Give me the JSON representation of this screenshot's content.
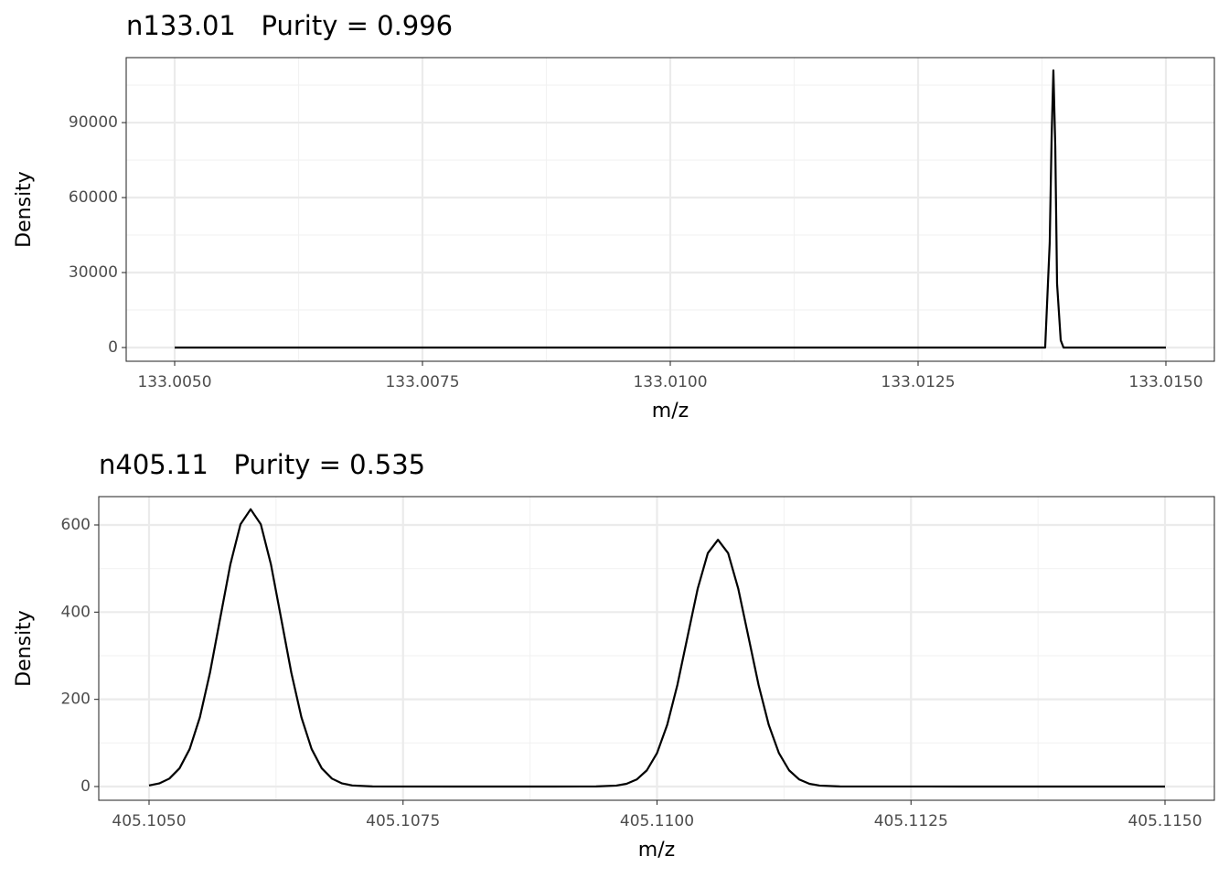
{
  "chart_data": [
    {
      "type": "line",
      "title": "n133.01   Purity = 0.996",
      "x_label": "m/z",
      "y_label": "Density",
      "color": "#000000",
      "grid": true,
      "minor_grid": true,
      "x": [
        133.005,
        133.013782,
        133.01381,
        133.013828,
        133.013847,
        133.013865,
        133.013884,
        133.013902,
        133.013939,
        133.013967,
        133.015
      ],
      "values": [
        0,
        0,
        25600,
        42000,
        84000,
        110900,
        80500,
        25600,
        2900,
        0,
        0
      ],
      "xlim": [
        133.004511,
        133.015489
      ],
      "ylim": [
        -5500,
        116000
      ],
      "xticks": [
        {
          "value": 133.005,
          "label": "133.0050"
        },
        {
          "value": 133.0075,
          "label": "133.0075"
        },
        {
          "value": 133.01,
          "label": "133.0100"
        },
        {
          "value": 133.0125,
          "label": "133.0125"
        },
        {
          "value": 133.015,
          "label": "133.0150"
        }
      ],
      "yticks": [
        0,
        30000,
        60000,
        90000
      ]
    },
    {
      "type": "line",
      "title": "n405.11   Purity = 0.535",
      "x_label": "m/z",
      "y_label": "Density",
      "color": "#000000",
      "grid": true,
      "minor_grid": true,
      "x": [
        405.105,
        405.1051,
        405.1052,
        405.1053,
        405.1054,
        405.1055,
        405.1056,
        405.1057,
        405.1058,
        405.1059,
        405.106,
        405.1061,
        405.1062,
        405.1063,
        405.1064,
        405.1065,
        405.1066,
        405.1067,
        405.1068,
        405.1069,
        405.107,
        405.1072,
        405.108,
        405.109,
        405.1094,
        405.1096,
        405.1097,
        405.1098,
        405.1099,
        405.11,
        405.1101,
        405.1102,
        405.1103,
        405.1104,
        405.1105,
        405.1106,
        405.1107,
        405.1108,
        405.1109,
        405.111,
        405.1111,
        405.1112,
        405.1113,
        405.1114,
        405.1115,
        405.1116,
        405.1118,
        405.113,
        405.115
      ],
      "values": [
        2.5,
        7.1,
        18.2,
        41.8,
        86.1,
        158.6,
        261.4,
        385.7,
        509.4,
        601.6,
        636,
        601.6,
        509.4,
        385.7,
        261.4,
        158.6,
        86.1,
        41.8,
        18.2,
        7.1,
        2.5,
        0.2,
        0,
        0,
        0.2,
        2.2,
        6.3,
        16.2,
        37.2,
        76.6,
        141.2,
        232.6,
        343.3,
        453.4,
        535.4,
        566,
        535.4,
        453.4,
        343.3,
        232.6,
        141.2,
        76.6,
        37.2,
        16.2,
        6.3,
        2.2,
        0.2,
        0,
        0
      ],
      "xlim": [
        405.104505,
        405.115486
      ],
      "ylim": [
        -31.5,
        665
      ],
      "xticks": [
        {
          "value": 405.105,
          "label": "405.1050"
        },
        {
          "value": 405.1075,
          "label": "405.1075"
        },
        {
          "value": 405.11,
          "label": "405.1100"
        },
        {
          "value": 405.1125,
          "label": "405.1125"
        },
        {
          "value": 405.115,
          "label": "405.1150"
        }
      ],
      "yticks": [
        0,
        200,
        400,
        600
      ]
    }
  ]
}
